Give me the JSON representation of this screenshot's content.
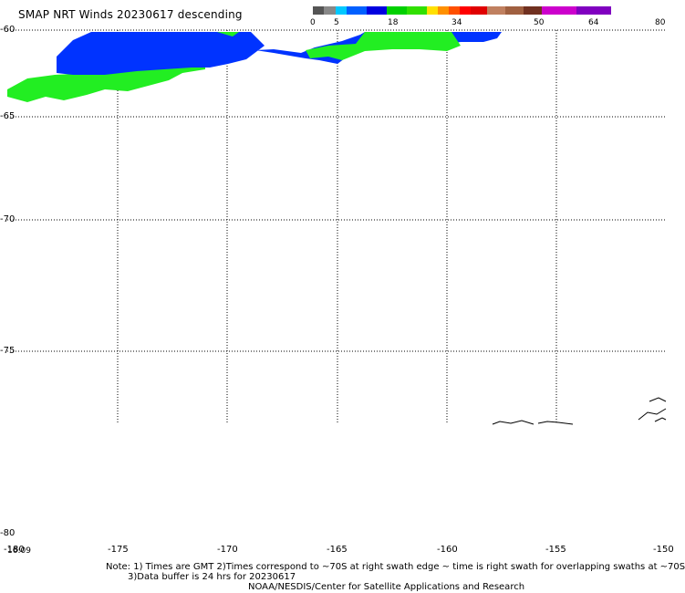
{
  "title": "SMAP NRT Winds  20230617 descending",
  "colorbar": {
    "ticks": [
      "0",
      "5",
      "18",
      "34",
      "50",
      "64",
      "80"
    ],
    "colors": [
      "#555555",
      "#888888",
      "#00c8ff",
      "#0060ff",
      "#0000e0",
      "#00d000",
      "#30e000",
      "#ffe000",
      "#ff9000",
      "#ff5000",
      "#ff0000",
      "#e00000",
      "#c08060",
      "#a06040",
      "#703020",
      "#cc00cc",
      "#8000c0"
    ]
  },
  "map": {
    "lon_labels": [
      "-180",
      "-175",
      "-170",
      "-165",
      "-160",
      "-155",
      "-150"
    ],
    "lat_labels": [
      "-60",
      "-65",
      "-70",
      "-75",
      "-80"
    ],
    "time_label": "16:09",
    "land_color": "#ffffff",
    "wind_colors": {
      "low": "#0033ff",
      "mid": "#22ee22"
    }
  },
  "notes": {
    "line1": "Note: 1) Times are GMT 2)Times correspond to ~70S at right swath edge ~ time is right swath for overlapping swaths at ~70S",
    "line2": "3)Data buffer is 24 hrs for 20230617",
    "line3": "NOAA/NESDIS/Center for Satellite Applications and Research"
  }
}
